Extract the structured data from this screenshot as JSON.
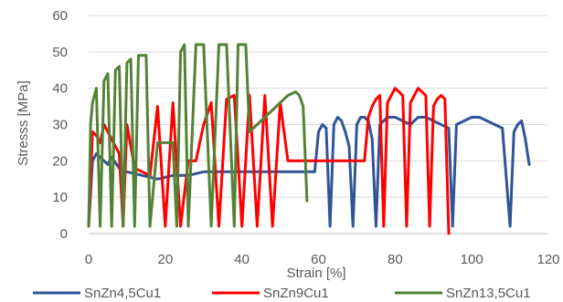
{
  "chart_data": {
    "type": "line",
    "title": "",
    "xlabel": "Strain [%]",
    "ylabel": "Stresss [MPa]",
    "xlim": [
      0,
      120
    ],
    "ylim": [
      0,
      60
    ],
    "xticks": [
      "0",
      "20",
      "40",
      "60",
      "80",
      "100",
      "120"
    ],
    "yticks": [
      "0",
      "10",
      "20",
      "30",
      "40",
      "50",
      "60"
    ],
    "grid": "horizontal",
    "legend_position": "bottom",
    "series": [
      {
        "name": "SnZn4,5Cu1",
        "color": "#2f5597",
        "x": [
          0,
          1,
          2,
          3,
          4,
          5,
          6,
          8,
          10,
          14,
          18,
          22,
          26,
          30,
          34,
          38,
          40,
          45,
          50,
          55,
          59,
          60,
          61,
          62,
          63,
          64,
          65,
          66,
          67,
          68,
          69,
          70,
          71,
          72,
          73,
          74,
          75,
          76,
          77,
          78,
          80,
          82,
          84,
          86,
          88,
          90,
          92,
          94,
          95,
          96,
          98,
          100,
          102,
          104,
          106,
          108,
          110,
          111,
          112,
          113,
          114,
          115
        ],
        "y": [
          2,
          20,
          22,
          21,
          20,
          19,
          21,
          18,
          17,
          16,
          15,
          16,
          16,
          17,
          17,
          17,
          17,
          17,
          17,
          17,
          17,
          28,
          30,
          29,
          2,
          30,
          32,
          31,
          28,
          24,
          2,
          30,
          32,
          32,
          31,
          26,
          2,
          30,
          31,
          32,
          32,
          31,
          30,
          32,
          32,
          31,
          30,
          29,
          2,
          30,
          31,
          32,
          32,
          31,
          30,
          29,
          2,
          28,
          30,
          31,
          26,
          19
        ]
      },
      {
        "name": "SnZn9Cu1",
        "color": "#ff0000",
        "x": [
          0,
          1,
          2,
          3,
          4,
          6,
          8,
          9,
          10,
          12,
          14,
          16,
          18,
          20,
          22,
          24,
          26,
          28,
          30,
          32,
          34,
          36,
          38,
          40,
          42,
          44,
          46,
          48,
          50,
          52,
          55,
          58,
          60,
          62,
          64,
          66,
          68,
          70,
          72,
          73,
          74,
          75,
          76,
          77,
          78,
          79,
          80,
          81,
          82,
          83,
          84,
          85,
          86,
          87,
          88,
          89,
          90,
          91,
          92,
          93,
          94
        ],
        "y": [
          2,
          28,
          27,
          25,
          30,
          26,
          22,
          2,
          30,
          18,
          17,
          16,
          35,
          2,
          36,
          2,
          20,
          20,
          30,
          36,
          2,
          37,
          38,
          2,
          38,
          2,
          38,
          2,
          36,
          20,
          20,
          20,
          20,
          20,
          20,
          20,
          20,
          20,
          20,
          32,
          35,
          37,
          38,
          2,
          36,
          38,
          40,
          39,
          38,
          2,
          36,
          38,
          40,
          39,
          38,
          2,
          35,
          37,
          38,
          37,
          0
        ]
      },
      {
        "name": "SnZn13,5Cu1",
        "color": "#548235",
        "x": [
          0,
          0.5,
          1,
          2,
          3,
          4,
          5,
          6,
          7,
          8,
          9,
          10,
          11,
          12,
          13,
          14,
          15,
          16,
          18,
          20,
          22,
          23,
          24,
          25,
          26,
          28,
          30,
          32,
          34,
          36,
          38,
          39,
          40,
          41,
          42,
          44,
          46,
          48,
          50,
          52,
          54,
          55,
          56,
          57
        ],
        "y": [
          2,
          30,
          36,
          40,
          2,
          42,
          44,
          2,
          45,
          46,
          2,
          47,
          48,
          2,
          49,
          49,
          49,
          2,
          25,
          25,
          25,
          2,
          50,
          52,
          2,
          52,
          52,
          2,
          52,
          52,
          2,
          52,
          52,
          52,
          28,
          30,
          32,
          34,
          36,
          38,
          39,
          38,
          35,
          9
        ]
      }
    ]
  }
}
